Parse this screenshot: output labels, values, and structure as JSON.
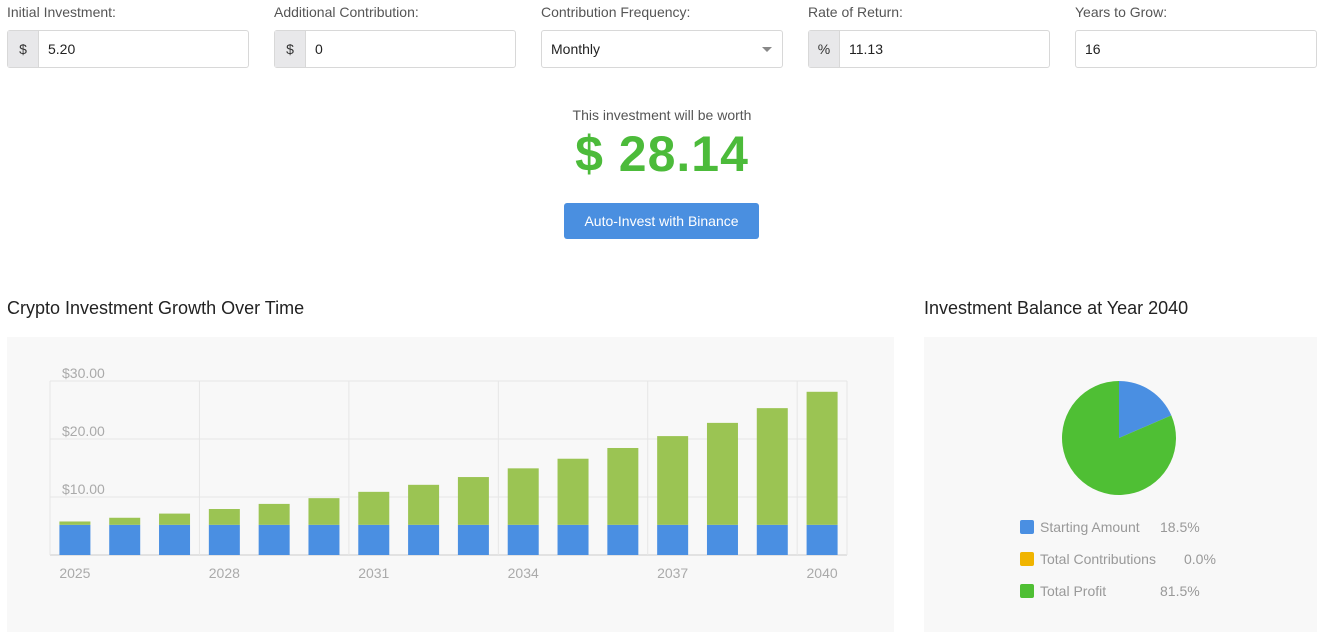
{
  "form": {
    "fields": [
      {
        "label": "Initial Investment:",
        "prefix": "$",
        "value": "5.20"
      },
      {
        "label": "Additional Contribution:",
        "prefix": "$",
        "value": "0"
      },
      {
        "label": "Contribution Frequency:",
        "value": "Monthly"
      },
      {
        "label": "Rate of Return:",
        "prefix": "%",
        "value": "11.13"
      },
      {
        "label": "Years to Grow:",
        "value": "16"
      }
    ]
  },
  "result": {
    "caption": "This investment will be worth",
    "currency": "$",
    "amount": "28.14"
  },
  "button": "Auto-Invest with Binance",
  "chart_data": [
    {
      "type": "bar",
      "title": "Crypto Investment Growth Over Time",
      "categories": [
        "2025",
        null,
        null,
        "2028",
        null,
        null,
        "2031",
        null,
        null,
        "2034",
        null,
        null,
        "2037",
        null,
        null,
        "2040"
      ],
      "series": [
        {
          "name": "Starting Amount",
          "color": "#4a8fe2",
          "values": [
            5.2,
            5.2,
            5.2,
            5.2,
            5.2,
            5.2,
            5.2,
            5.2,
            5.2,
            5.2,
            5.2,
            5.2,
            5.2,
            5.2,
            5.2,
            5.2
          ]
        },
        {
          "name": "Total Profit",
          "color": "#9bc453",
          "values": [
            0.58,
            1.22,
            1.94,
            2.73,
            3.61,
            4.6,
            5.69,
            6.9,
            8.24,
            9.74,
            11.4,
            13.25,
            15.3,
            17.58,
            20.12,
            22.94
          ]
        }
      ],
      "stacked": true,
      "ylim": [
        0,
        30
      ],
      "yticks": [
        {
          "value": 10,
          "label": "$10.00"
        },
        {
          "value": 20,
          "label": "$20.00"
        },
        {
          "value": 30,
          "label": "$30.00"
        }
      ],
      "grid": true
    },
    {
      "type": "pie",
      "title": "Investment Balance at Year 2040",
      "categories": [
        "Starting Amount",
        "Total Contributions",
        "Total Profit"
      ],
      "values": [
        18.5,
        0,
        81.5
      ],
      "value_labels": [
        "18.5%",
        "0.0%",
        "81.5%"
      ],
      "colors": [
        "#4a8fe2",
        "#f0b400",
        "#4fbf34"
      ]
    }
  ]
}
